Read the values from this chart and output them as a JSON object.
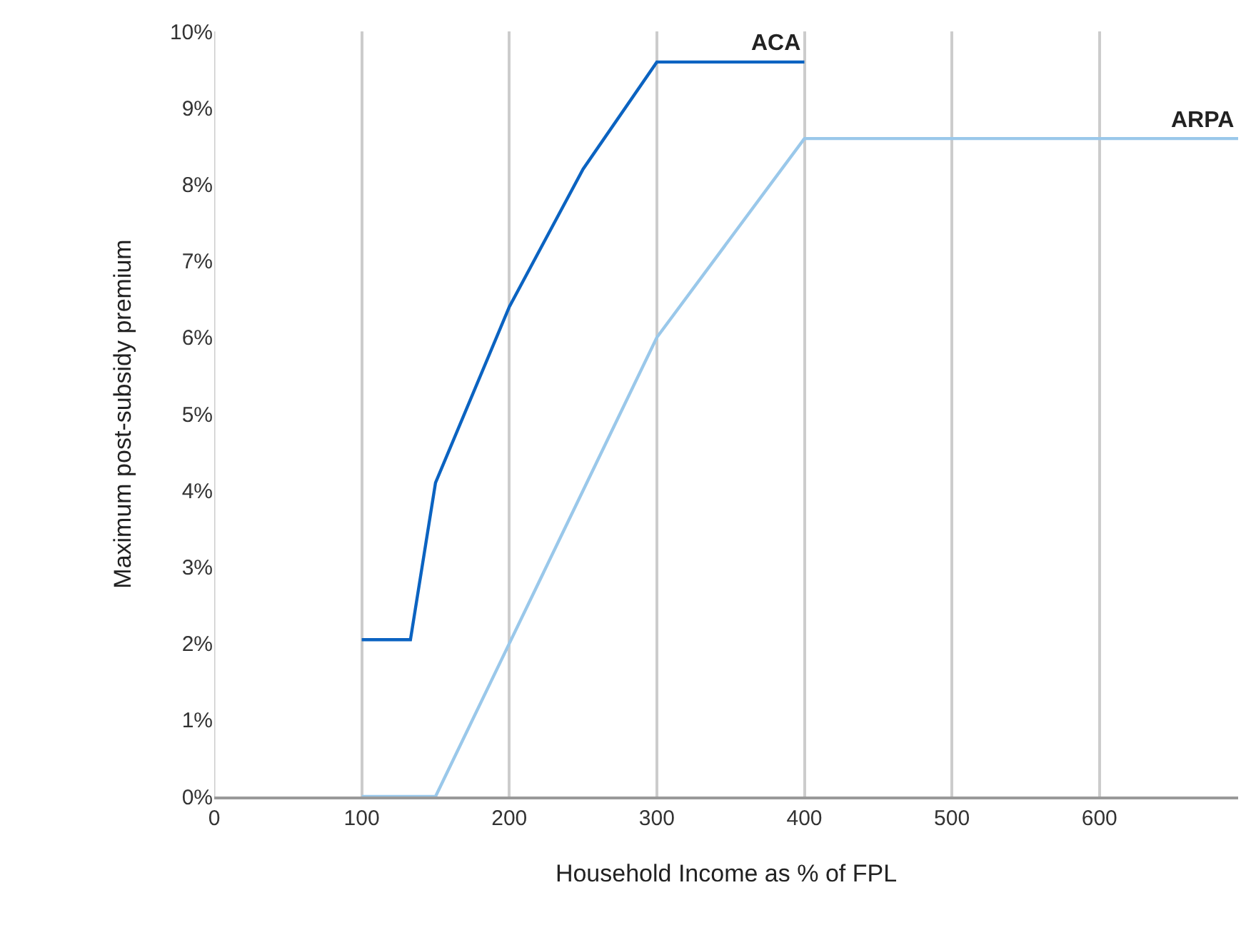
{
  "chart_data": {
    "type": "line",
    "xlabel": "Household Income as % of FPL",
    "ylabel": "Maximum post-subsidy premium",
    "series": [
      {
        "name": "ACA",
        "color": "#0b63c1",
        "x": [
          100,
          133,
          150,
          200,
          250,
          300,
          400
        ],
        "values": [
          2.05,
          2.05,
          4.1,
          6.4,
          8.2,
          9.6,
          9.6
        ]
      },
      {
        "name": "ARPA",
        "color": "#9ac8ea",
        "x": [
          100,
          150,
          200,
          250,
          300,
          400,
          694
        ],
        "values": [
          0,
          0,
          2,
          4,
          6,
          8.6,
          8.6
        ]
      }
    ],
    "xlim": [
      0,
      694
    ],
    "xticks": [
      0,
      100,
      200,
      300,
      400,
      500,
      600
    ],
    "ylim": [
      0,
      10
    ],
    "yticks": [
      {
        "value": 0,
        "label": "0%"
      },
      {
        "value": 1,
        "label": "1%"
      },
      {
        "value": 2,
        "label": "2%"
      },
      {
        "value": 3,
        "label": "3%"
      },
      {
        "value": 4,
        "label": "4%"
      },
      {
        "value": 5,
        "label": "5%"
      },
      {
        "value": 6,
        "label": "6%"
      },
      {
        "value": 7,
        "label": "7%"
      },
      {
        "value": 8,
        "label": "8%"
      },
      {
        "value": 9,
        "label": "9%"
      },
      {
        "value": 10,
        "label": "10%"
      }
    ],
    "grid": "x",
    "legend": false,
    "marker": "none",
    "line_style": "solid"
  }
}
